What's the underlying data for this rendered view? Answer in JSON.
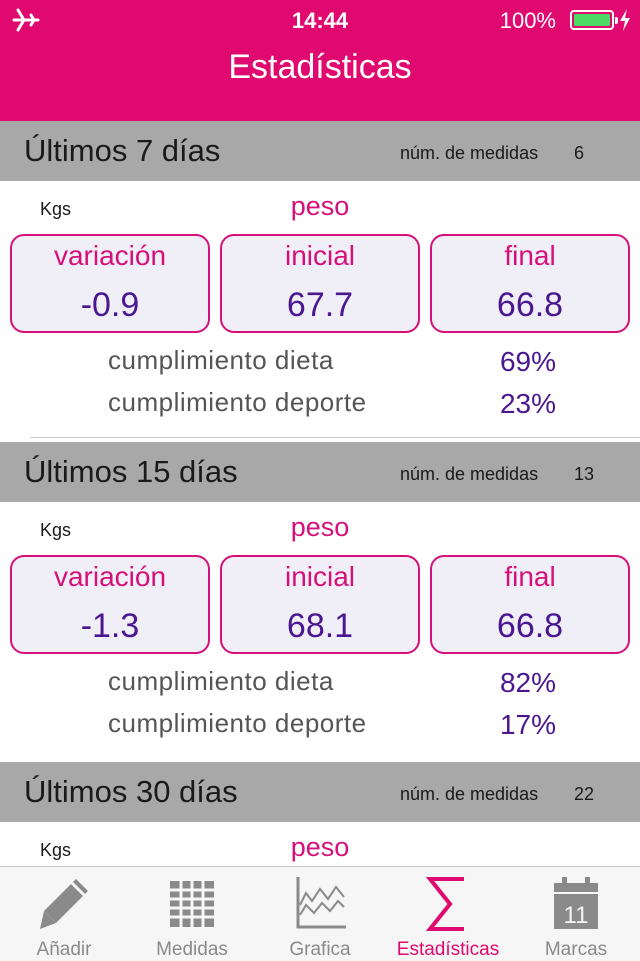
{
  "status": {
    "time": "14:44",
    "battery_pct": "100%",
    "battery_level": 1.0
  },
  "nav": {
    "title": "Estadísticas"
  },
  "sections": [
    {
      "title": "Últimos 7 días",
      "count_label": "núm. de medidas",
      "count": "6",
      "unit": "Kgs",
      "metric": "peso",
      "boxes": [
        {
          "label": "variación",
          "value": "-0.9"
        },
        {
          "label": "inicial",
          "value": "67.7"
        },
        {
          "label": "final",
          "value": "66.8"
        }
      ],
      "diet_label": "cumplimiento dieta",
      "diet_value": "69%",
      "sport_label": "cumplimiento deporte",
      "sport_value": "23%"
    },
    {
      "title": "Últimos 15 días",
      "count_label": "núm. de medidas",
      "count": "13",
      "unit": "Kgs",
      "metric": "peso",
      "boxes": [
        {
          "label": "variación",
          "value": "-1.3"
        },
        {
          "label": "inicial",
          "value": "68.1"
        },
        {
          "label": "final",
          "value": "66.8"
        }
      ],
      "diet_label": "cumplimiento dieta",
      "diet_value": "82%",
      "sport_label": "cumplimiento deporte",
      "sport_value": "17%"
    },
    {
      "title": "Últimos 30 días",
      "count_label": "núm. de medidas",
      "count": "22",
      "unit": "Kgs",
      "metric": "peso"
    }
  ],
  "tabs": [
    {
      "label": "Añadir",
      "icon": "pencil-icon"
    },
    {
      "label": "Medidas",
      "icon": "grid-icon"
    },
    {
      "label": "Grafica",
      "icon": "chart-icon"
    },
    {
      "label": "Estadísticas",
      "icon": "sigma-icon",
      "active": true
    },
    {
      "label": "Marcas",
      "icon": "calendar-icon",
      "badge": "11"
    }
  ],
  "colors": {
    "accent": "#e0096f",
    "value": "#4b1790",
    "section_bg": "#a8a8a8",
    "box_bg": "#f0eef6"
  }
}
